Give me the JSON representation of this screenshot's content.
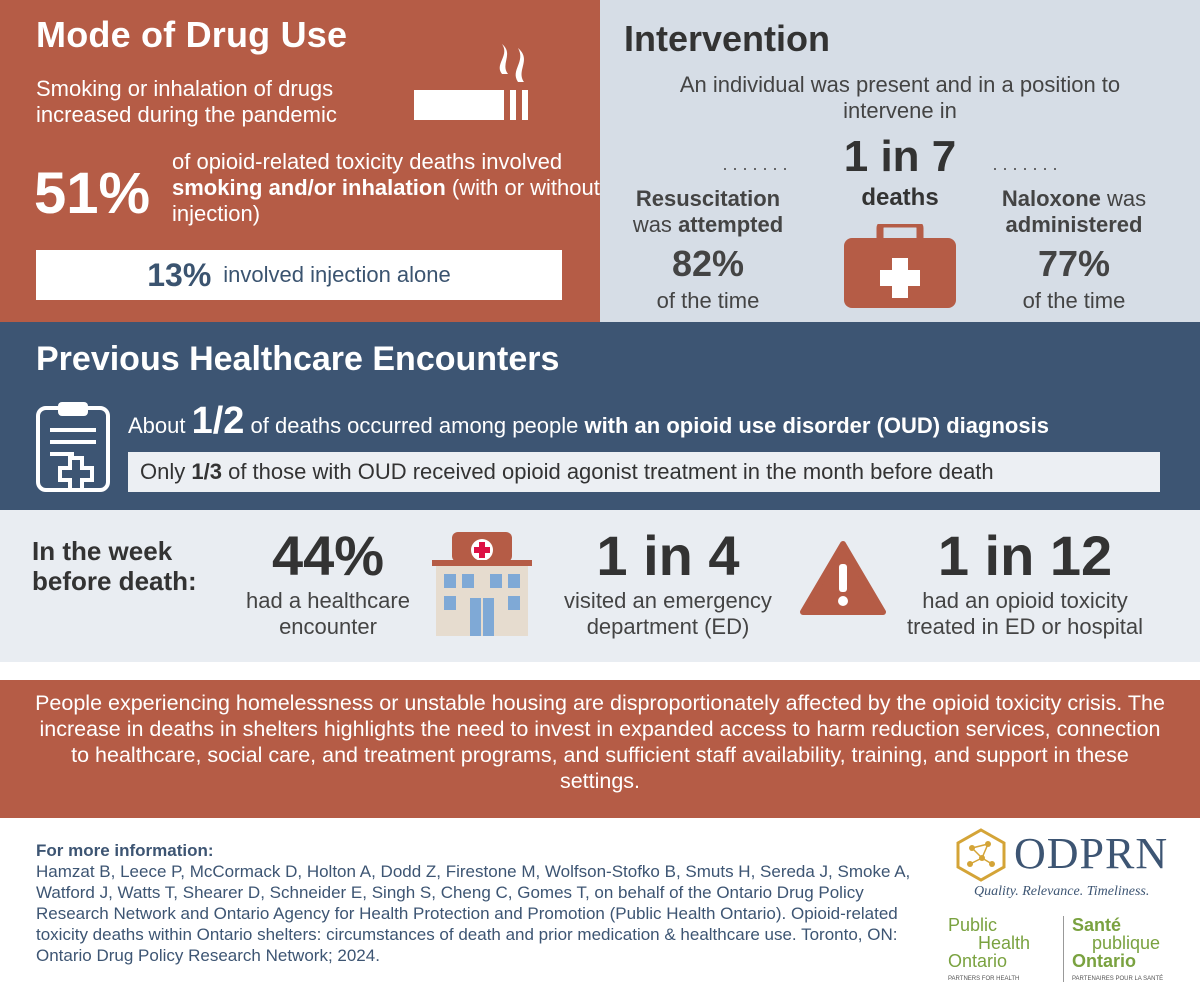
{
  "mode": {
    "title": "Mode of Drug Use",
    "subtitle": "Smoking or inhalation of drugs increased during the pandemic",
    "pct": "51%",
    "desc_pre": "of opioid-related toxicity deaths involved ",
    "desc_bold": "smoking and/or inhalation",
    "desc_post": " (with or without injection)",
    "injection_pct": "13%",
    "injection_text": "involved injection alone",
    "icon": "cigarette-icon"
  },
  "intervention": {
    "title": "Intervention",
    "lead": "An individual was present and in a position to intervene in",
    "ratio": "1 in 7",
    "deaths": "deaths",
    "left_a": "Resuscitation",
    "left_b": "was ",
    "left_c": "attempted",
    "left_pct": "82%",
    "left_tail": "of the time",
    "right_a": "Naloxone",
    "right_b": " was",
    "right_c": "administered",
    "right_pct": "77%",
    "right_tail": "of the time",
    "icon": "medical-kit-icon"
  },
  "previous": {
    "title": "Previous Healthcare Encounters",
    "about": "About ",
    "frac": "1/2",
    "mid": " of deaths occurred among people ",
    "bold": "with an opioid use disorder (OUD) diagnosis",
    "only_pre": "Only ",
    "only_frac": "1/3",
    "only_post": " of those with OUD received opioid agonist treatment in the month before death",
    "icon": "clipboard-icon"
  },
  "week": {
    "label_1": "In the week",
    "label_2": "before death:",
    "s1_n": "44%",
    "s1_t1": "had a healthcare",
    "s1_t2": "encounter",
    "s2_n": "1 in 4",
    "s2_t1": "visited an emergency",
    "s2_t2": "department (ED)",
    "s3_n": "1 in 12",
    "s3_t1": "had an opioid toxicity",
    "s3_t2": "treated in ED or hospital",
    "icons": [
      "hospital-icon",
      "warning-icon"
    ]
  },
  "note": "People experiencing homelessness or unstable housing are disproportionately affected by the opioid toxicity crisis. The increase in deaths in shelters highlights the need to invest in expanded access to harm reduction services, connection to healthcare, social care, and treatment programs, and sufficient staff availability, training, and support in these settings.",
  "footer": {
    "heading": "For more information:",
    "citation": "Hamzat B, Leece P, McCormack D, Holton A, Dodd Z, Firestone M, Wolfson-Stofko B, Smuts H, Sereda J, Smoke A, Watford J, Watts T, Shearer D, Schneider E, Singh S, Cheng C, Gomes T, on behalf of the Ontario Drug Policy Research Network and Ontario Agency for Health Protection and Promotion (Public Health Ontario). Opioid-related toxicity deaths within Ontario shelters: circumstances of death and prior medication & healthcare use. Toronto, ON: Ontario Drug Policy Research Network; 2024."
  },
  "logos": {
    "odprn": "ODPRN",
    "odprn_tag": "Quality. Relevance. Timeliness.",
    "pho_en_1": "Public",
    "pho_en_2": "Health",
    "pho_en_3": "Ontario",
    "pho_en_tag": "PARTNERS FOR HEALTH",
    "pho_fr_1": "Santé",
    "pho_fr_2": "publique",
    "pho_fr_3": "Ontario",
    "pho_fr_tag": "PARTENAIRES POUR LA SANTÉ"
  },
  "colors": {
    "rust": "#b55c46",
    "navy": "#3d5573",
    "light_blue": "#d6dde6",
    "light_gray": "#e9edf2",
    "green": "#7aa240",
    "gold": "#d4a437"
  }
}
